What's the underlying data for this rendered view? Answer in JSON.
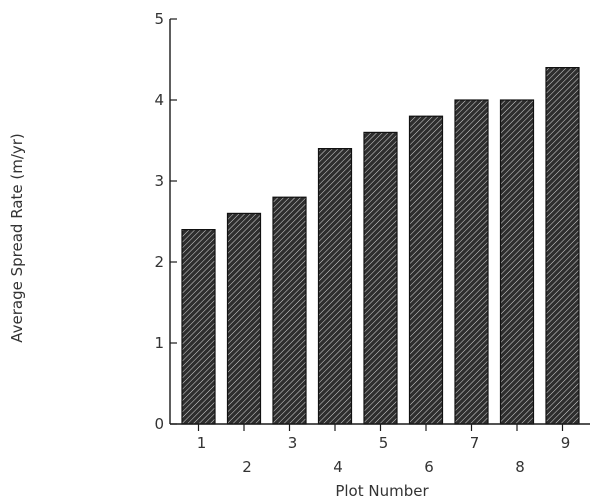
{
  "chart_data": {
    "type": "bar",
    "categories": [
      "1",
      "2",
      "3",
      "4",
      "5",
      "6",
      "7",
      "8",
      "9"
    ],
    "values": [
      2.4,
      2.6,
      2.8,
      3.4,
      3.6,
      3.8,
      4.0,
      4.0,
      4.4
    ],
    "title": "",
    "xlabel": "Plot Number",
    "ylabel": "Average Spread Rate (m/yr)",
    "ylim": [
      0,
      5
    ],
    "yticks": [
      0,
      1,
      2,
      3,
      4,
      5
    ],
    "grid": false,
    "bar_fill": "diagonal-hatch",
    "bar_color": "#2a2a2a"
  }
}
